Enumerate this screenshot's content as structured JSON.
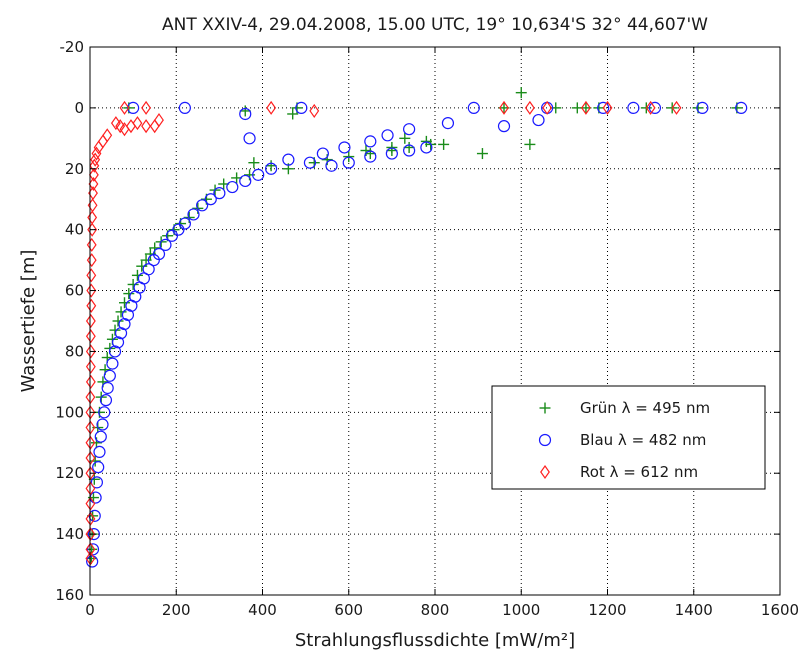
{
  "chart_data": {
    "type": "scatter",
    "title": "ANT XXIV-4, 29.04.2008, 15.00 UTC, 19° 10,634'S 32° 44,607'W",
    "xlabel": "Strahlungsflussdichte  [mW/m²]",
    "ylabel": "Wassertiefe  [m]",
    "xlim": [
      0,
      1600
    ],
    "ylim": [
      -20,
      160
    ],
    "y_reversed": true,
    "grid": true,
    "legend_position": "lower-right",
    "x_ticks": [
      "0",
      "200",
      "400",
      "600",
      "800",
      "1000",
      "1200",
      "1400",
      "1600"
    ],
    "y_ticks": [
      "-20",
      "0",
      "20",
      "40",
      "60",
      "80",
      "100",
      "120",
      "140",
      "160"
    ],
    "series": [
      {
        "name": "Grün λ = 495 nm",
        "marker": "plus",
        "color": "#1a8c1a",
        "points": [
          [
            90,
            0
          ],
          [
            480,
            0
          ],
          [
            1130,
            0
          ],
          [
            1290,
            0
          ],
          [
            1410,
            0
          ],
          [
            1500,
            0
          ],
          [
            1000,
            -5
          ],
          [
            1080,
            0
          ],
          [
            1180,
            0
          ],
          [
            360,
            1
          ],
          [
            470,
            2
          ],
          [
            960,
            0
          ],
          [
            1150,
            0
          ],
          [
            1350,
            0
          ],
          [
            1020,
            12
          ],
          [
            910,
            15
          ],
          [
            790,
            12
          ],
          [
            700,
            13
          ],
          [
            640,
            14
          ],
          [
            550,
            17
          ],
          [
            600,
            16
          ],
          [
            650,
            15
          ],
          [
            700,
            14
          ],
          [
            740,
            13
          ],
          [
            780,
            11
          ],
          [
            820,
            12
          ],
          [
            730,
            10
          ],
          [
            520,
            18
          ],
          [
            460,
            20
          ],
          [
            420,
            19
          ],
          [
            380,
            18
          ],
          [
            370,
            22
          ],
          [
            340,
            23
          ],
          [
            310,
            25
          ],
          [
            290,
            27
          ],
          [
            270,
            30
          ],
          [
            250,
            33
          ],
          [
            230,
            36
          ],
          [
            210,
            38
          ],
          [
            195,
            40
          ],
          [
            180,
            42
          ],
          [
            165,
            44
          ],
          [
            150,
            46
          ],
          [
            140,
            48
          ],
          [
            130,
            50
          ],
          [
            120,
            52
          ],
          [
            110,
            55
          ],
          [
            100,
            58
          ],
          [
            90,
            61
          ],
          [
            80,
            64
          ],
          [
            72,
            67
          ],
          [
            65,
            70
          ],
          [
            58,
            73
          ],
          [
            52,
            76
          ],
          [
            46,
            79
          ],
          [
            40,
            82
          ],
          [
            35,
            86
          ],
          [
            30,
            90
          ],
          [
            26,
            95
          ],
          [
            22,
            100
          ],
          [
            18,
            105
          ],
          [
            15,
            110
          ],
          [
            12,
            116
          ],
          [
            10,
            122
          ],
          [
            8,
            128
          ],
          [
            6,
            134
          ],
          [
            5,
            140
          ],
          [
            4,
            145
          ],
          [
            3,
            148
          ]
        ]
      },
      {
        "name": "Blau λ = 482 nm",
        "marker": "circle",
        "color": "#1a1aff",
        "points": [
          [
            100,
            0
          ],
          [
            220,
            0
          ],
          [
            490,
            0
          ],
          [
            890,
            0
          ],
          [
            1060,
            0
          ],
          [
            1190,
            0
          ],
          [
            1260,
            0
          ],
          [
            1310,
            0
          ],
          [
            1420,
            0
          ],
          [
            1510,
            0
          ],
          [
            360,
            2
          ],
          [
            1040,
            4
          ],
          [
            960,
            6
          ],
          [
            830,
            5
          ],
          [
            740,
            7
          ],
          [
            690,
            9
          ],
          [
            650,
            11
          ],
          [
            590,
            13
          ],
          [
            540,
            15
          ],
          [
            370,
            10
          ],
          [
            460,
            17
          ],
          [
            510,
            18
          ],
          [
            560,
            19
          ],
          [
            600,
            18
          ],
          [
            650,
            16
          ],
          [
            700,
            15
          ],
          [
            740,
            14
          ],
          [
            780,
            13
          ],
          [
            420,
            20
          ],
          [
            390,
            22
          ],
          [
            360,
            24
          ],
          [
            330,
            26
          ],
          [
            300,
            28
          ],
          [
            280,
            30
          ],
          [
            260,
            32
          ],
          [
            240,
            35
          ],
          [
            220,
            38
          ],
          [
            205,
            40
          ],
          [
            190,
            42
          ],
          [
            175,
            45
          ],
          [
            160,
            48
          ],
          [
            148,
            50
          ],
          [
            136,
            53
          ],
          [
            125,
            56
          ],
          [
            115,
            59
          ],
          [
            105,
            62
          ],
          [
            96,
            65
          ],
          [
            88,
            68
          ],
          [
            80,
            71
          ],
          [
            72,
            74
          ],
          [
            65,
            77
          ],
          [
            58,
            80
          ],
          [
            52,
            84
          ],
          [
            46,
            88
          ],
          [
            41,
            92
          ],
          [
            37,
            96
          ],
          [
            33,
            100
          ],
          [
            29,
            104
          ],
          [
            25,
            108
          ],
          [
            22,
            113
          ],
          [
            19,
            118
          ],
          [
            16,
            123
          ],
          [
            13,
            128
          ],
          [
            11,
            134
          ],
          [
            9,
            140
          ],
          [
            7,
            145
          ],
          [
            5,
            149
          ]
        ]
      },
      {
        "name": "Rot  λ = 612 nm",
        "marker": "diamond",
        "color": "#ff2020",
        "points": [
          [
            80,
            0
          ],
          [
            130,
            0
          ],
          [
            420,
            0
          ],
          [
            520,
            1
          ],
          [
            960,
            0
          ],
          [
            1020,
            0
          ],
          [
            1060,
            0
          ],
          [
            1150,
            0
          ],
          [
            1200,
            0
          ],
          [
            1300,
            0
          ],
          [
            1360,
            0
          ],
          [
            160,
            4
          ],
          [
            150,
            6
          ],
          [
            130,
            6
          ],
          [
            110,
            5
          ],
          [
            95,
            6
          ],
          [
            80,
            7
          ],
          [
            70,
            6
          ],
          [
            60,
            5
          ],
          [
            40,
            9
          ],
          [
            30,
            11
          ],
          [
            20,
            13
          ],
          [
            15,
            15
          ],
          [
            12,
            17
          ],
          [
            10,
            19
          ],
          [
            9,
            22
          ],
          [
            8,
            25
          ],
          [
            7,
            28
          ],
          [
            6,
            32
          ],
          [
            5,
            36
          ],
          [
            5,
            40
          ],
          [
            4,
            45
          ],
          [
            4,
            50
          ],
          [
            3,
            55
          ],
          [
            3,
            60
          ],
          [
            3,
            65
          ],
          [
            2,
            70
          ],
          [
            2,
            75
          ],
          [
            2,
            80
          ],
          [
            2,
            85
          ],
          [
            2,
            90
          ],
          [
            1,
            95
          ],
          [
            1,
            100
          ],
          [
            1,
            105
          ],
          [
            1,
            110
          ],
          [
            1,
            115
          ],
          [
            1,
            120
          ],
          [
            1,
            125
          ],
          [
            1,
            130
          ],
          [
            1,
            135
          ],
          [
            1,
            140
          ],
          [
            1,
            145
          ],
          [
            1,
            148
          ]
        ]
      }
    ]
  }
}
